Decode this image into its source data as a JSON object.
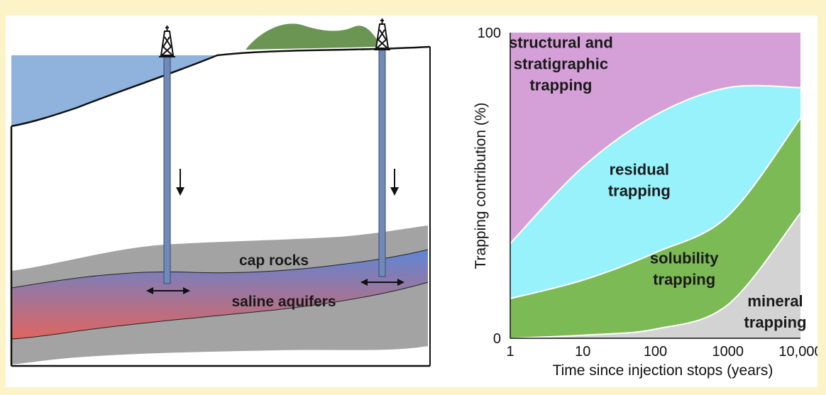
{
  "diagram": {
    "left_labels": {
      "cap_rocks": "cap rocks",
      "saline_aquifers": "saline aquifers"
    },
    "colors": {
      "ocean": "#8fb3dd",
      "rock": "#a3a3a3",
      "hill": "#6b9552",
      "pipe": "#6f8ab8",
      "aquifer_top": "#5d86d6",
      "aquifer_bottom": "#e0655f"
    },
    "wells": [
      "offshore-well",
      "onshore-well"
    ]
  },
  "chart_data": {
    "type": "area",
    "title": "",
    "xlabel": "Time since injection stops (years)",
    "ylabel": "Trapping contribution (%)",
    "x_scale": "log",
    "xlim": [
      1,
      10000
    ],
    "ylim": [
      0,
      100
    ],
    "xticks": [
      "1",
      "10",
      "100",
      "1000",
      "10,000"
    ],
    "yticks": [
      "0",
      "100"
    ],
    "x": [
      1,
      10,
      100,
      1000,
      10000
    ],
    "boundaries": {
      "mineral_top": [
        0,
        1,
        3,
        11,
        41
      ],
      "solubility_top": [
        13,
        19,
        28,
        40,
        72
      ],
      "residual_top": [
        31,
        56,
        73,
        82,
        82
      ]
    },
    "series": [
      {
        "name": "structural and stratigraphic trapping",
        "label_lines": [
          "structural and",
          "stratigraphic",
          "trapping"
        ],
        "color": "#d5a0d8"
      },
      {
        "name": "residual trapping",
        "label_lines": [
          "residual",
          "trapping"
        ],
        "color": "#97f2fb"
      },
      {
        "name": "solubility trapping",
        "label_lines": [
          "solubility",
          "trapping"
        ],
        "color": "#7cba55"
      },
      {
        "name": "mineral trapping",
        "label_lines": [
          "mineral",
          "trapping"
        ],
        "color": "#d3d3d3"
      }
    ]
  }
}
